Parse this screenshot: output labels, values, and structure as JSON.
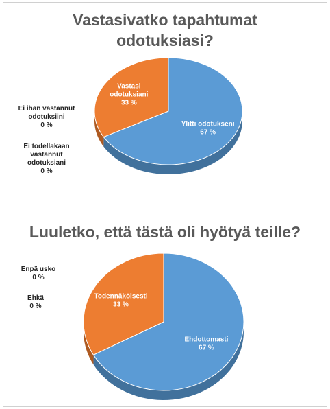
{
  "colors": {
    "blue": "#5b9bd5",
    "blue_side": "#41719c",
    "orange": "#ed7d31",
    "orange_side": "#ae5a21"
  },
  "chart_data": [
    {
      "type": "pie",
      "title": "Vastasivatko tapahtumat odotuksiasi?",
      "title_lines": [
        "Vastasivatko tapahtumat",
        "odotuksiasi?"
      ],
      "slices": [
        {
          "label": "Ylitti odotukseni",
          "label_lines": [
            "Ylitti odotukseni"
          ],
          "value": 67,
          "display": "67 %",
          "color": "#5b9bd5"
        },
        {
          "label": "Vastasi odotuksiani",
          "label_lines": [
            "Vastasi",
            "odotuksiani"
          ],
          "value": 33,
          "display": "33 %",
          "color": "#ed7d31"
        },
        {
          "label": "Ei ihan vastannut odotuksiini",
          "label_lines": [
            "Ei ihan vastannut",
            "odotuksiini"
          ],
          "value": 0,
          "display": "0 %"
        },
        {
          "label": "Ei todellakaan vastannut odotuksiani",
          "label_lines": [
            "Ei todellakaan",
            "vastannut",
            "odotuksiani"
          ],
          "value": 0,
          "display": "0 %"
        }
      ]
    },
    {
      "type": "pie",
      "title": "Luuletko, että tästä oli hyötyä teille?",
      "title_lines": [
        "Luuletko, että tästä oli hyötyä teille?"
      ],
      "slices": [
        {
          "label": "Ehdottomasti",
          "label_lines": [
            "Ehdottomasti"
          ],
          "value": 67,
          "display": "67 %",
          "color": "#5b9bd5"
        },
        {
          "label": "Todennäköisesti",
          "label_lines": [
            "Todennäköisesti"
          ],
          "value": 33,
          "display": "33 %",
          "color": "#ed7d31"
        },
        {
          "label": "Enpä usko",
          "label_lines": [
            "Enpä usko"
          ],
          "value": 0,
          "display": "0 %"
        },
        {
          "label": "Ehkä",
          "label_lines": [
            "Ehkä"
          ],
          "value": 0,
          "display": "0 %"
        }
      ]
    }
  ]
}
